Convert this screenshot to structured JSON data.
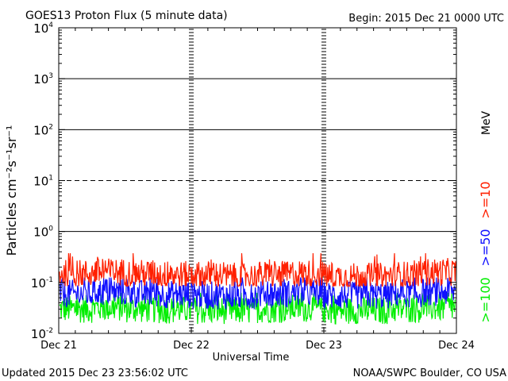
{
  "header": {
    "title": "GOES13 Proton Flux (5 minute data)",
    "begin": "Begin: 2015 Dec 21 0000 UTC"
  },
  "footer": {
    "updated": "Updated 2015 Dec 23 23:56:02 UTC",
    "credit": "NOAA/SWPC Boulder, CO USA"
  },
  "colors": {
    "ge10": "#ff2000",
    "ge50": "#1010ff",
    "ge100": "#00ee00",
    "frame": "#000000"
  },
  "chart_data": {
    "type": "line",
    "title": "GOES13 Proton Flux (5 minute data)",
    "xlabel": "Universal Time",
    "ylabel": "Particles cm⁻²s⁻¹sr⁻¹",
    "yscale": "log",
    "ylim": [
      0.01,
      10000
    ],
    "xlim": [
      "2015-12-21 00:00",
      "2015-12-24 00:00"
    ],
    "x_ticks": [
      "Dec 21",
      "Dec 22",
      "Dec 23",
      "Dec 24"
    ],
    "y_ticks": [
      {
        "base": "10",
        "exp": "4",
        "value": 10000
      },
      {
        "base": "10",
        "exp": "3",
        "value": 1000
      },
      {
        "base": "10",
        "exp": "2",
        "value": 100
      },
      {
        "base": "10",
        "exp": "1",
        "value": 10
      },
      {
        "base": "10",
        "exp": "0",
        "value": 1
      },
      {
        "base": "10",
        "exp": "-1",
        "value": 0.1
      },
      {
        "base": "10",
        "exp": "-2",
        "value": 0.01
      }
    ],
    "threshold_lines": [
      {
        "value": 1000,
        "style": "solid"
      },
      {
        "value": 100,
        "style": "solid"
      },
      {
        "value": 10,
        "style": "dashed"
      },
      {
        "value": 1,
        "style": "solid"
      }
    ],
    "legend_unit": "MeV",
    "legend_position": "right",
    "series": [
      {
        "name": ">=10",
        "color": "#ff2000",
        "typical_range": [
          0.1,
          0.3
        ],
        "levels_per_6h": [
          0.15,
          0.16,
          0.15,
          0.14,
          0.14,
          0.13,
          0.14,
          0.15,
          0.13,
          0.13,
          0.14,
          0.16
        ]
      },
      {
        "name": ">=50",
        "color": "#1010ff",
        "typical_range": [
          0.035,
          0.1
        ],
        "levels_per_6h": [
          0.06,
          0.065,
          0.06,
          0.058,
          0.056,
          0.055,
          0.06,
          0.062,
          0.055,
          0.056,
          0.06,
          0.065
        ]
      },
      {
        "name": ">=100",
        "color": "#00ee00",
        "typical_range": [
          0.018,
          0.05
        ],
        "levels_per_6h": [
          0.03,
          0.032,
          0.03,
          0.029,
          0.028,
          0.028,
          0.03,
          0.031,
          0.028,
          0.028,
          0.03,
          0.032
        ]
      }
    ]
  }
}
